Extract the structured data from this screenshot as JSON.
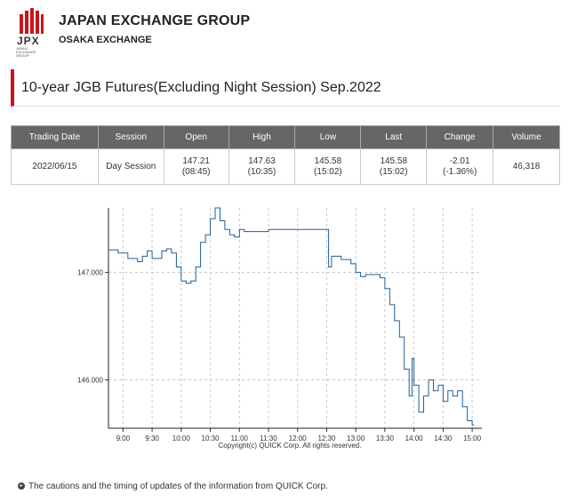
{
  "header": {
    "logo_text": "JPX",
    "logo_subtext": "JAPAN EXCHANGE GROUP",
    "title": "JAPAN EXCHANGE GROUP",
    "subtitle": "OSAKA EXCHANGE",
    "brand_color": "#c8161d"
  },
  "page": {
    "title": "10-year JGB Futures(Excluding Night Session) Sep.2022"
  },
  "table": {
    "headers": [
      "Trading Date",
      "Session",
      "Open",
      "High",
      "Low",
      "Last",
      "Change",
      "Volume"
    ],
    "row": {
      "date": "2022/06/15",
      "session": "Day Session",
      "open": "147.21",
      "open_time": "(08:45)",
      "high": "147.63",
      "high_time": "(10:35)",
      "low": "145.58",
      "low_time": "(15:02)",
      "last": "145.58",
      "last_time": "(15:02)",
      "change": "-2.01",
      "change_pct": "(-1.36%)",
      "volume": "46,318"
    }
  },
  "chart_data": {
    "type": "line",
    "series": [
      {
        "color": "#1f5f9a",
        "x": [
          "08:45",
          "08:55",
          "09:05",
          "09:15",
          "09:20",
          "09:25",
          "09:30",
          "09:40",
          "09:45",
          "09:50",
          "09:55",
          "10:00",
          "10:05",
          "10:10",
          "10:15",
          "10:20",
          "10:25",
          "10:30",
          "10:35",
          "10:40",
          "10:45",
          "10:50",
          "10:55",
          "11:00",
          "11:05",
          "11:30",
          "12:30",
          "12:32",
          "12:35",
          "12:45",
          "12:55",
          "13:00",
          "13:05",
          "13:10",
          "13:20",
          "13:25",
          "13:30",
          "13:35",
          "13:40",
          "13:45",
          "13:50",
          "13:55",
          "13:58",
          "14:00",
          "14:05",
          "14:10",
          "14:15",
          "14:20",
          "14:25",
          "14:30",
          "14:35",
          "14:40",
          "14:45",
          "14:50",
          "14:55",
          "15:00",
          "15:02"
        ],
        "y": [
          147.21,
          147.18,
          147.13,
          147.1,
          147.15,
          147.2,
          147.13,
          147.2,
          147.22,
          147.18,
          147.05,
          146.92,
          146.9,
          146.92,
          147.05,
          147.28,
          147.35,
          147.5,
          147.6,
          147.48,
          147.4,
          147.35,
          147.33,
          147.4,
          147.38,
          147.4,
          147.4,
          147.05,
          147.15,
          147.12,
          147.08,
          147.0,
          146.96,
          146.98,
          146.98,
          146.95,
          146.85,
          146.7,
          146.55,
          146.4,
          146.1,
          145.85,
          146.2,
          145.95,
          145.7,
          145.85,
          146.0,
          145.9,
          145.95,
          145.8,
          145.9,
          145.85,
          145.9,
          145.75,
          145.62,
          145.58,
          145.58
        ]
      }
    ],
    "xticks": [
      "9:00",
      "9:30",
      "10:00",
      "10:30",
      "11:00",
      "11:30",
      "12:00",
      "12:30",
      "13:00",
      "13:30",
      "14:00",
      "14:30",
      "15:00"
    ],
    "yticks": [
      146.0,
      147.0
    ],
    "ytick_labels": [
      "146.000",
      "147.000"
    ],
    "xlim": [
      "08:45",
      "15:10"
    ],
    "ylim": [
      145.55,
      147.6
    ],
    "grid": true,
    "caption": "Copyright(c) QUICK Corp. All rights reserved."
  },
  "notes": {
    "text": "The cautions and the timing of updates of the information from QUICK Corp."
  }
}
